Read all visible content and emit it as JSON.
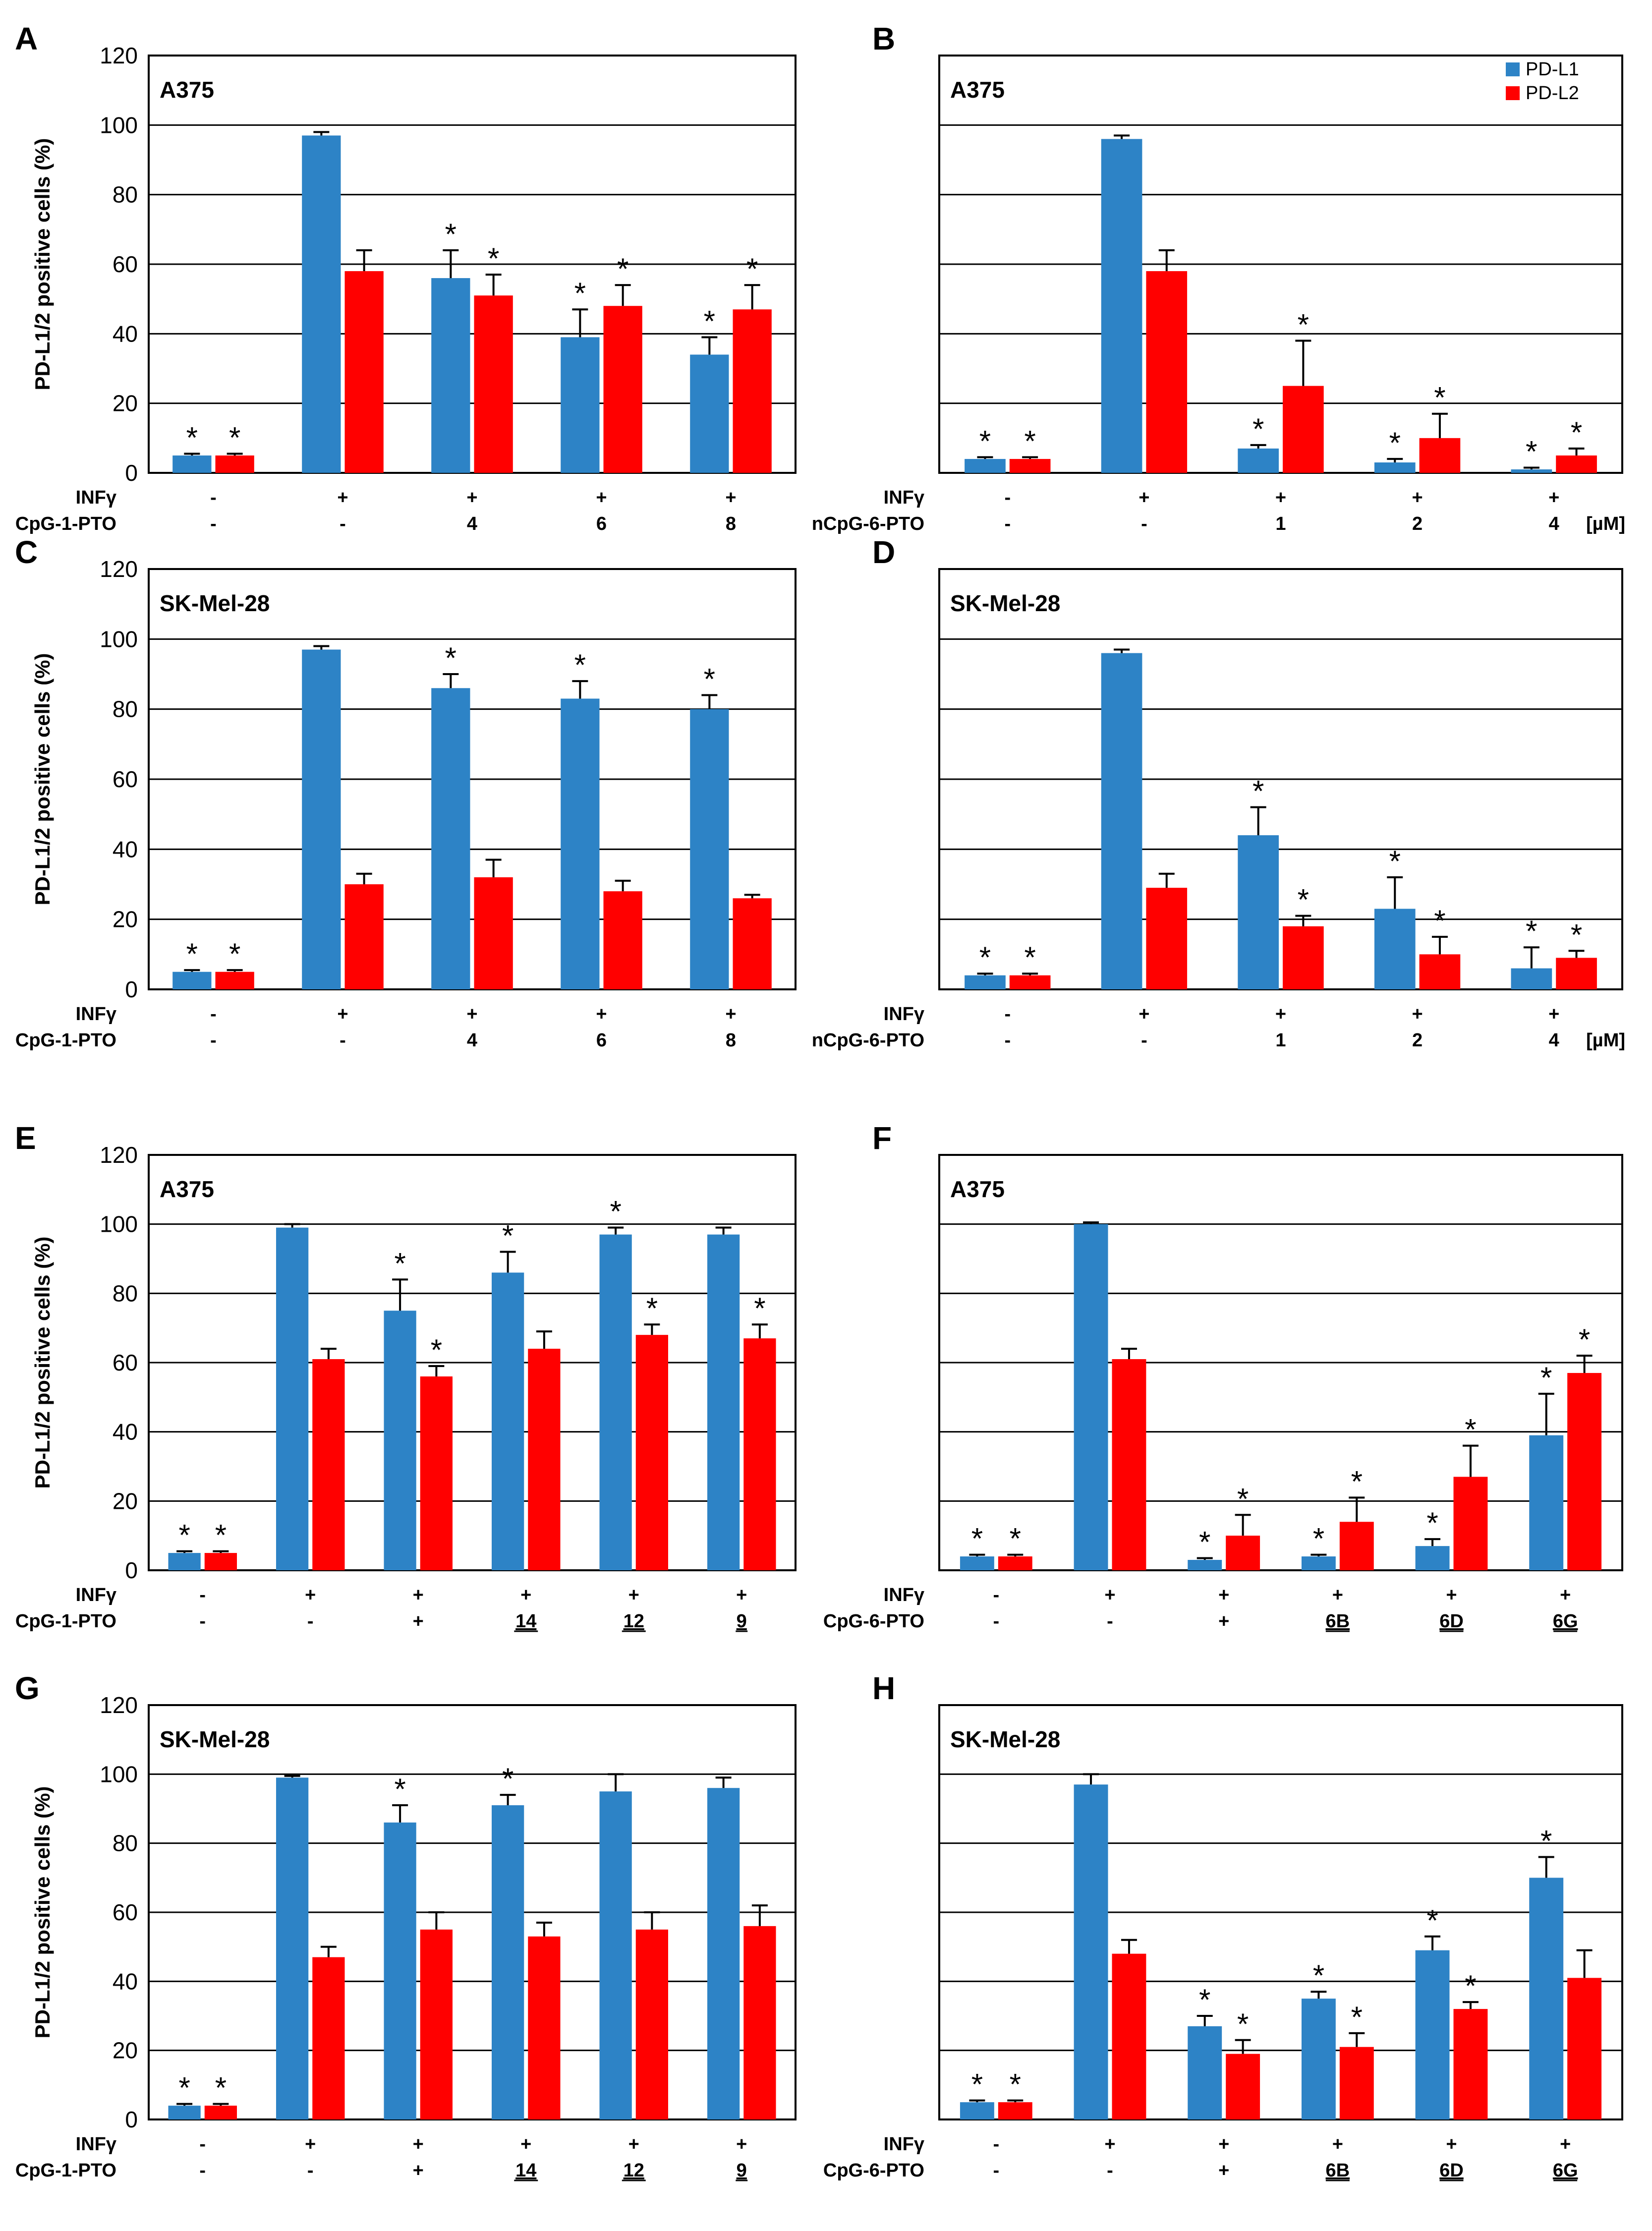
{
  "legend": {
    "series": [
      {
        "name": "PD-L1",
        "color": "#2d83c6"
      },
      {
        "name": "PD-L2",
        "color": "#ff0000"
      }
    ]
  },
  "chart_data": [
    {
      "type": "bar",
      "panel": "A",
      "cell_line": "A375",
      "ylabel": "PD-L1/2 positive cells (%)",
      "ylim": [
        0,
        120
      ],
      "yticks": [
        "0",
        "20",
        "40",
        "60",
        "80",
        "100",
        "120"
      ],
      "show_ytick_labels": true,
      "condition_rows": [
        {
          "name": "INFγ",
          "values": [
            "-",
            "+",
            "+",
            "+",
            "+"
          ]
        },
        {
          "name": "CpG-1-PTO",
          "values": [
            "-",
            "-",
            "4",
            "6",
            "8"
          ]
        }
      ],
      "unit_label": "",
      "series": [
        {
          "name": "PD-L1",
          "values": [
            5,
            97,
            56,
            39,
            34
          ],
          "errors": [
            0.5,
            1,
            8,
            8,
            5
          ],
          "significant": [
            true,
            false,
            true,
            true,
            true
          ]
        },
        {
          "name": "PD-L2",
          "values": [
            5,
            58,
            51,
            48,
            47
          ],
          "errors": [
            0.5,
            6,
            6,
            6,
            7
          ],
          "significant": [
            true,
            false,
            true,
            true,
            true
          ]
        }
      ]
    },
    {
      "type": "bar",
      "panel": "B",
      "cell_line": "A375",
      "ylabel": "",
      "ylim": [
        0,
        120
      ],
      "yticks": [],
      "show_ytick_labels": false,
      "condition_rows": [
        {
          "name": "INFγ",
          "values": [
            "-",
            "+",
            "+",
            "+",
            "+"
          ]
        },
        {
          "name": "nCpG-6-PTO",
          "values": [
            "-",
            "-",
            "1",
            "2",
            "4"
          ]
        }
      ],
      "unit_label": "[µM]",
      "show_legend": true,
      "series": [
        {
          "name": "PD-L1",
          "values": [
            4,
            96,
            7,
            3,
            1
          ],
          "errors": [
            0.5,
            1,
            1,
            1,
            0.5
          ],
          "significant": [
            true,
            false,
            true,
            true,
            true
          ]
        },
        {
          "name": "PD-L2",
          "values": [
            4,
            58,
            25,
            10,
            5
          ],
          "errors": [
            0.5,
            6,
            13,
            7,
            2
          ],
          "significant": [
            true,
            false,
            true,
            true,
            true
          ]
        }
      ]
    },
    {
      "type": "bar",
      "panel": "C",
      "cell_line": "SK-Mel-28",
      "ylabel": "PD-L1/2 positive cells (%)",
      "ylim": [
        0,
        120
      ],
      "yticks": [
        "0",
        "20",
        "40",
        "60",
        "80",
        "100",
        "120"
      ],
      "show_ytick_labels": true,
      "condition_rows": [
        {
          "name": "INFγ",
          "values": [
            "-",
            "+",
            "+",
            "+",
            "+"
          ]
        },
        {
          "name": "CpG-1-PTO",
          "values": [
            "-",
            "-",
            "4",
            "6",
            "8"
          ]
        }
      ],
      "unit_label": "",
      "series": [
        {
          "name": "PD-L1",
          "values": [
            5,
            97,
            86,
            83,
            80
          ],
          "errors": [
            0.5,
            1,
            4,
            5,
            4
          ],
          "significant": [
            true,
            false,
            true,
            true,
            true
          ]
        },
        {
          "name": "PD-L2",
          "values": [
            5,
            30,
            32,
            28,
            26
          ],
          "errors": [
            0.5,
            3,
            5,
            3,
            1
          ],
          "significant": [
            true,
            false,
            false,
            false,
            false
          ]
        }
      ]
    },
    {
      "type": "bar",
      "panel": "D",
      "cell_line": "SK-Mel-28",
      "ylabel": "",
      "ylim": [
        0,
        120
      ],
      "yticks": [],
      "show_ytick_labels": false,
      "condition_rows": [
        {
          "name": "INFγ",
          "values": [
            "-",
            "+",
            "+",
            "+",
            "+"
          ]
        },
        {
          "name": "nCpG-6-PTO",
          "values": [
            "-",
            "-",
            "1",
            "2",
            "4"
          ]
        }
      ],
      "unit_label": "[µM]",
      "series": [
        {
          "name": "PD-L1",
          "values": [
            4,
            96,
            44,
            23,
            6
          ],
          "errors": [
            0.5,
            1,
            8,
            9,
            6
          ],
          "significant": [
            true,
            false,
            true,
            true,
            true
          ]
        },
        {
          "name": "PD-L2",
          "values": [
            4,
            29,
            18,
            10,
            9
          ],
          "errors": [
            0.5,
            4,
            3,
            5,
            2
          ],
          "significant": [
            true,
            false,
            true,
            true,
            true
          ]
        }
      ]
    },
    {
      "type": "bar",
      "panel": "E",
      "cell_line": "A375",
      "ylabel": "PD-L1/2 positive cells (%)",
      "ylim": [
        0,
        120
      ],
      "yticks": [
        "0",
        "20",
        "40",
        "60",
        "80",
        "100",
        "120"
      ],
      "show_ytick_labels": true,
      "condition_rows": [
        {
          "name": "INFγ",
          "values": [
            "-",
            "+",
            "+",
            "+",
            "+",
            "+"
          ]
        },
        {
          "name": "CpG-1-PTO",
          "values": [
            "-",
            "-",
            "+",
            "14",
            "12",
            "9"
          ],
          "underlined": [
            false,
            false,
            false,
            true,
            true,
            true
          ]
        }
      ],
      "unit_label": "",
      "series": [
        {
          "name": "PD-L1",
          "values": [
            5,
            99,
            75,
            86,
            97,
            97
          ],
          "errors": [
            0.5,
            1,
            9,
            6,
            2,
            2
          ],
          "significant": [
            true,
            false,
            true,
            true,
            true,
            false
          ]
        },
        {
          "name": "PD-L2",
          "values": [
            5,
            61,
            56,
            64,
            68,
            67
          ],
          "errors": [
            0.5,
            3,
            3,
            5,
            3,
            4
          ],
          "significant": [
            true,
            false,
            true,
            false,
            true,
            true
          ]
        }
      ]
    },
    {
      "type": "bar",
      "panel": "F",
      "cell_line": "A375",
      "ylabel": "",
      "ylim": [
        0,
        120
      ],
      "yticks": [],
      "show_ytick_labels": false,
      "condition_rows": [
        {
          "name": "INFγ",
          "values": [
            "-",
            "+",
            "+",
            "+",
            "+",
            "+"
          ]
        },
        {
          "name": "CpG-6-PTO",
          "values": [
            "-",
            "-",
            "+",
            "6B",
            "6D",
            "6G"
          ],
          "underlined": [
            false,
            false,
            false,
            true,
            true,
            true
          ]
        }
      ],
      "unit_label": "",
      "series": [
        {
          "name": "PD-L1",
          "values": [
            4,
            100,
            3,
            4,
            7,
            39
          ],
          "errors": [
            0.5,
            0.5,
            0.5,
            0.5,
            2,
            12
          ],
          "significant": [
            true,
            false,
            true,
            true,
            true,
            true
          ]
        },
        {
          "name": "PD-L2",
          "values": [
            4,
            61,
            10,
            14,
            27,
            57
          ],
          "errors": [
            0.5,
            3,
            6,
            7,
            9,
            5
          ],
          "significant": [
            true,
            false,
            true,
            true,
            true,
            true
          ]
        }
      ]
    },
    {
      "type": "bar",
      "panel": "G",
      "cell_line": "SK-Mel-28",
      "ylabel": "PD-L1/2 positive cells (%)",
      "ylim": [
        0,
        120
      ],
      "yticks": [
        "0",
        "20",
        "40",
        "60",
        "80",
        "100",
        "120"
      ],
      "show_ytick_labels": true,
      "condition_rows": [
        {
          "name": "INFγ",
          "values": [
            "-",
            "+",
            "+",
            "+",
            "+",
            "+"
          ]
        },
        {
          "name": "CpG-1-PTO",
          "values": [
            "-",
            "-",
            "+",
            "14",
            "12",
            "9"
          ],
          "underlined": [
            false,
            false,
            false,
            true,
            true,
            true
          ]
        }
      ],
      "unit_label": "",
      "series": [
        {
          "name": "PD-L1",
          "values": [
            4,
            99,
            86,
            91,
            95,
            96
          ],
          "errors": [
            0.5,
            0.5,
            5,
            3,
            5,
            3
          ],
          "significant": [
            true,
            false,
            true,
            true,
            false,
            false
          ]
        },
        {
          "name": "PD-L2",
          "values": [
            4,
            47,
            55,
            53,
            55,
            56
          ],
          "errors": [
            0.5,
            3,
            5,
            4,
            5,
            6
          ],
          "significant": [
            true,
            false,
            false,
            false,
            false,
            false
          ]
        }
      ]
    },
    {
      "type": "bar",
      "panel": "H",
      "cell_line": "SK-Mel-28",
      "ylabel": "",
      "ylim": [
        0,
        120
      ],
      "yticks": [],
      "show_ytick_labels": false,
      "condition_rows": [
        {
          "name": "INFγ",
          "values": [
            "-",
            "+",
            "+",
            "+",
            "+",
            "+"
          ]
        },
        {
          "name": "CpG-6-PTO",
          "values": [
            "-",
            "-",
            "+",
            "6B",
            "6D",
            "6G"
          ],
          "underlined": [
            false,
            false,
            false,
            true,
            true,
            true
          ]
        }
      ],
      "unit_label": "",
      "series": [
        {
          "name": "PD-L1",
          "values": [
            5,
            97,
            27,
            35,
            49,
            70
          ],
          "errors": [
            0.5,
            3,
            3,
            2,
            4,
            6
          ],
          "significant": [
            true,
            false,
            true,
            true,
            true,
            true
          ]
        },
        {
          "name": "PD-L2",
          "values": [
            5,
            48,
            19,
            21,
            32,
            41
          ],
          "errors": [
            0.5,
            4,
            4,
            4,
            2,
            8
          ],
          "significant": [
            true,
            false,
            true,
            true,
            true,
            false
          ]
        }
      ]
    }
  ]
}
